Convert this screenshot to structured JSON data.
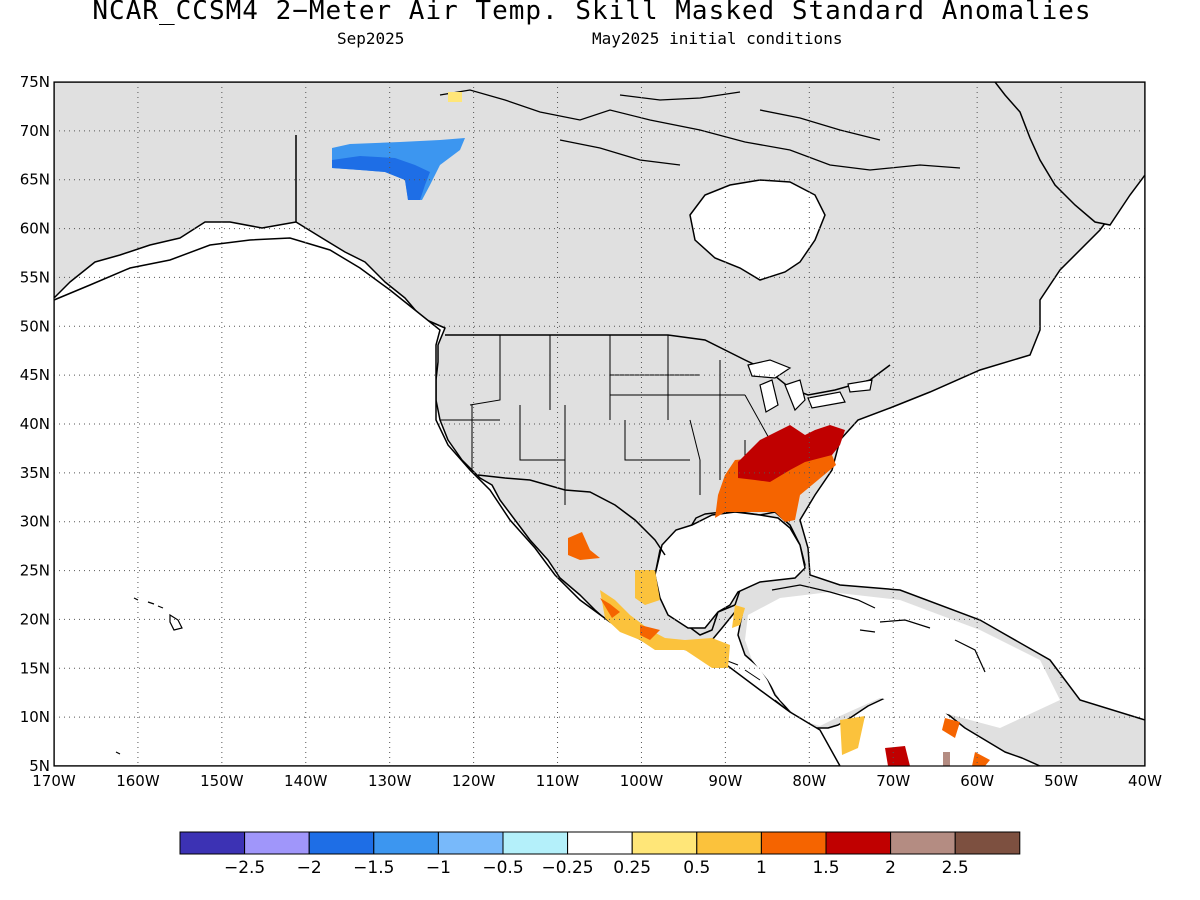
{
  "title": "NCAR_CCSM4 2−Meter Air Temp. Skill Masked Standard Anomalies",
  "subtitle_left": "Sep2025",
  "subtitle_right": "May2025 initial conditions",
  "map": {
    "lon_range": [
      -170,
      -40
    ],
    "lat_range": [
      5,
      75
    ],
    "lat_ticks": [
      "5N",
      "10N",
      "15N",
      "20N",
      "25N",
      "30N",
      "35N",
      "40N",
      "45N",
      "50N",
      "55N",
      "60N",
      "65N",
      "70N",
      "75N"
    ],
    "lon_ticks": [
      "170W",
      "160W",
      "150W",
      "140W",
      "130W",
      "120W",
      "110W",
      "100W",
      "90W",
      "80W",
      "70W",
      "60W",
      "50W",
      "40W"
    ],
    "land_color": "#e0e0e0",
    "ocean_color": "#ffffff",
    "anomaly_regions": [
      {
        "name": "northwest-canada-cold",
        "level": -1.5,
        "color": "#1e6ee6"
      },
      {
        "name": "northwest-canada-cool",
        "level": -1,
        "color": "#3c96f0"
      },
      {
        "name": "southeast-us-warm",
        "level": 1.5,
        "color": "#f56400"
      },
      {
        "name": "southeast-us-hot",
        "level": 2,
        "color": "#c00000"
      },
      {
        "name": "mexico-warm",
        "level": 0.5,
        "color": "#fbc23c"
      },
      {
        "name": "northern-mexico-warm",
        "level": 1.5,
        "color": "#f56400"
      }
    ]
  },
  "colorbar": {
    "colors": [
      "#3c32b4",
      "#a096fa",
      "#1e6ee6",
      "#3c96f0",
      "#78b9fa",
      "#b4f0fa",
      "#ffffff",
      "#ffe678",
      "#fbc23c",
      "#f56400",
      "#c00000",
      "#b48c82",
      "#7d5040"
    ],
    "labels": [
      "−2.5",
      "−2",
      "−1.5",
      "−1",
      "−0.5",
      "−0.25",
      "0.25",
      "0.5",
      "1",
      "1.5",
      "2",
      "2.5"
    ]
  }
}
